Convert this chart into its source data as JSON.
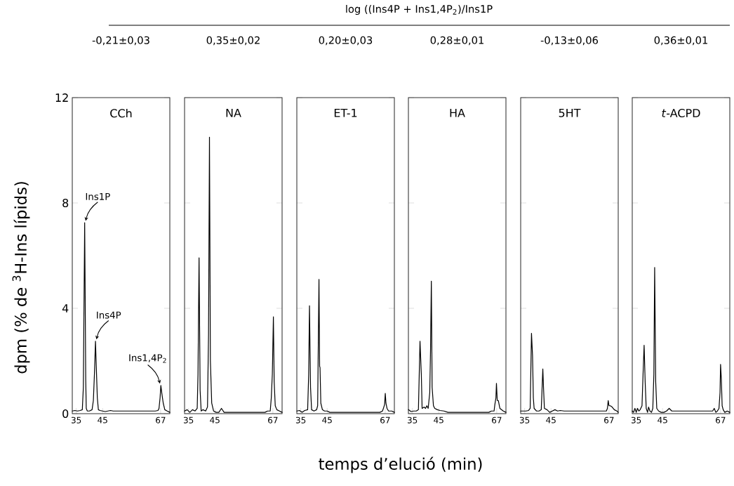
{
  "chart_data": [
    {
      "type": "other",
      "title": "log ((Ins4P + Ins1,4P$_{2}$)/Ins1P",
      "xlabel": "temps d’elució (min)"
    },
    {
      "type": "line",
      "title": "-0,21±0,03",
      "ylabel": "dpm (% de $^{3}$H-Ins lípids)",
      "color": "#000000",
      "xlim": [
        33.5,
        70.5
      ],
      "xticks": [
        35,
        45,
        67
      ],
      "ylim": [
        0,
        12
      ],
      "yticks": [
        0,
        4,
        8,
        12
      ],
      "annotations": [
        "CCh",
        {
          "text": "Ins1P",
          "x": 38.2,
          "y": 7.25
        },
        {
          "text": "Ins4P",
          "x": 42.3,
          "y": 2.75
        },
        {
          "text": "Ins1,4P$_{2}$",
          "x": 67.1,
          "y": 1.07
        }
      ],
      "x": [
        33.5,
        34.5,
        35.5,
        36.5,
        37.3,
        37.7,
        38.2,
        38.6,
        38.8,
        39.2,
        40,
        41,
        41.5,
        41.9,
        42.3,
        42.6,
        43.0,
        43.4,
        44,
        45,
        46,
        47,
        48,
        49,
        50,
        64,
        65,
        66,
        66.4,
        66.8,
        67.1,
        67.5,
        68,
        68.6,
        69.5,
        70.5
      ],
      "values": [
        0.1,
        0.12,
        0.1,
        0.12,
        0.15,
        1.0,
        7.25,
        1.3,
        0.2,
        0.1,
        0.1,
        0.15,
        0.5,
        1.5,
        2.75,
        1.8,
        0.6,
        0.15,
        0.12,
        0.1,
        0.08,
        0.1,
        0.12,
        0.1,
        0.1,
        0.1,
        0.1,
        0.12,
        0.2,
        0.6,
        1.07,
        0.75,
        0.4,
        0.15,
        0.1,
        0.05
      ]
    },
    {
      "type": "line",
      "title": "0,35±0,02",
      "color": "#000000",
      "xlim": [
        33.5,
        70.5
      ],
      "xticks": [
        35,
        45,
        67
      ],
      "ylim": [
        0,
        12
      ],
      "yticks": [
        0,
        4,
        8,
        12
      ],
      "tick_labels": "x",
      "annotations": [
        "NA"
      ],
      "x": [
        33.5,
        34.5,
        35.5,
        36.5,
        37.5,
        38.3,
        38.6,
        39.0,
        39.4,
        39.8,
        40.5,
        41.5,
        42.2,
        42.6,
        42.95,
        43.3,
        43.8,
        44.5,
        45.5,
        46.5,
        47.5,
        48.5,
        50,
        64,
        65,
        66,
        66.4,
        66.8,
        67.2,
        67.5,
        67.9,
        68.5,
        69.5,
        70.5
      ],
      "values": [
        0.1,
        0.15,
        0.05,
        0.15,
        0.1,
        0.2,
        1.5,
        5.92,
        0.9,
        0.1,
        0.15,
        0.1,
        0.25,
        3.0,
        10.5,
        2.0,
        0.4,
        0.1,
        0.05,
        0.05,
        0.2,
        0.05,
        0.05,
        0.05,
        0.1,
        0.1,
        0.6,
        1.5,
        3.68,
        1.2,
        0.3,
        0.15,
        0.1,
        0.05
      ]
    },
    {
      "type": "line",
      "title": "0,20±0,03",
      "color": "#000000",
      "xlim": [
        33.5,
        70.5
      ],
      "xticks": [
        35,
        45,
        67
      ],
      "ylim": [
        0,
        12
      ],
      "yticks": [
        0,
        4,
        8,
        12
      ],
      "tick_labels": "x",
      "annotations": [
        "ET-1"
      ],
      "x": [
        33.5,
        34.5,
        35.5,
        36.5,
        37.6,
        38.0,
        38.3,
        38.7,
        39.1,
        40,
        41,
        41.4,
        41.9,
        42.15,
        42.3,
        42.6,
        43.2,
        44,
        45,
        46,
        47,
        48,
        49,
        50,
        64,
        65,
        66,
        66.5,
        66.8,
        67.05,
        67.3,
        67.7,
        68.3,
        69.5,
        70.5
      ],
      "values": [
        0.1,
        0.12,
        0.05,
        0.12,
        0.15,
        1.5,
        4.1,
        1.0,
        0.15,
        0.1,
        0.15,
        0.3,
        5.1,
        1.8,
        1.75,
        0.4,
        0.15,
        0.1,
        0.1,
        0.05,
        0.05,
        0.05,
        0.05,
        0.05,
        0.05,
        0.05,
        0.1,
        0.25,
        0.35,
        0.77,
        0.4,
        0.2,
        0.1,
        0.1,
        0.05
      ]
    },
    {
      "type": "line",
      "title": "0,28±0,01",
      "color": "#000000",
      "xlim": [
        33.5,
        70.5
      ],
      "xticks": [
        35,
        45,
        67
      ],
      "ylim": [
        0,
        12
      ],
      "yticks": [
        0,
        4,
        8,
        12
      ],
      "tick_labels": "x",
      "annotations": [
        "HA"
      ],
      "x": [
        33.5,
        34.5,
        35.5,
        36.5,
        37.3,
        37.9,
        38.4,
        38.7,
        39.5,
        40,
        40.5,
        41.0,
        41.6,
        41.9,
        42.2,
        42.5,
        43,
        43.5,
        44.5,
        45.5,
        47,
        48.5,
        50,
        64,
        65,
        66,
        66.3,
        66.7,
        66.9,
        67.2,
        67.6,
        68.2,
        69.5,
        70.5
      ],
      "values": [
        0.15,
        0.08,
        0.1,
        0.1,
        0.15,
        2.75,
        1.5,
        0.2,
        0.25,
        0.2,
        0.3,
        0.2,
        0.8,
        2.45,
        5.03,
        1.0,
        0.3,
        0.2,
        0.15,
        0.12,
        0.1,
        0.05,
        0.05,
        0.05,
        0.1,
        0.1,
        0.35,
        0.6,
        1.15,
        0.5,
        0.5,
        0.2,
        0.1,
        0.05
      ]
    },
    {
      "type": "line",
      "title": "-0,13±0,06",
      "color": "#000000",
      "xlim": [
        33.5,
        70.5
      ],
      "xticks": [
        35,
        45,
        67
      ],
      "ylim": [
        0,
        12
      ],
      "yticks": [
        0,
        4,
        8,
        12
      ],
      "tick_labels": "x",
      "annotations": [
        "5HT"
      ],
      "x": [
        33.5,
        34.5,
        35.5,
        36.5,
        37.1,
        37.6,
        38.0,
        38.3,
        38.6,
        39.5,
        40.5,
        41.3,
        41.6,
        41.9,
        42.2,
        42.5,
        43.5,
        44.5,
        45.5,
        46.5,
        47.5,
        48.5,
        50,
        64,
        65,
        66,
        66.4,
        66.7,
        67.0,
        67.5,
        68.2,
        69,
        70,
        70.5
      ],
      "values": [
        0.1,
        0.1,
        0.1,
        0.12,
        0.2,
        3.05,
        2.2,
        0.6,
        0.2,
        0.1,
        0.1,
        0.15,
        0.9,
        1.7,
        0.9,
        0.2,
        0.15,
        0.05,
        0.1,
        0.15,
        0.1,
        0.12,
        0.1,
        0.1,
        0.1,
        0.1,
        0.2,
        0.5,
        0.3,
        0.3,
        0.25,
        0.15,
        0.1,
        0.05
      ]
    },
    {
      "type": "line",
      "title": "0,36±0,01",
      "color": "#000000",
      "xlim": [
        33.5,
        70.5
      ],
      "xticks": [
        35,
        45,
        67
      ],
      "ylim": [
        0,
        12
      ],
      "yticks": [
        0,
        4,
        8,
        12
      ],
      "tick_labels": "x",
      "annotations": [
        "*t*-ACPD"
      ],
      "x": [
        33.5,
        34,
        34.5,
        35,
        35.5,
        36,
        36.5,
        37.2,
        37.6,
        38.0,
        38.4,
        38.8,
        39.3,
        39.7,
        40.2,
        40.8,
        41.3,
        41.7,
        42.0,
        42.4,
        42.8,
        43.5,
        44.5,
        45.5,
        46.5,
        47.5,
        48.5,
        50,
        64,
        64.6,
        65.2,
        65.8,
        66.4,
        66.8,
        67.0,
        67.3,
        67.6,
        68,
        68.6,
        69.5,
        70.5
      ],
      "values": [
        0.1,
        0.05,
        0.2,
        0.05,
        0.2,
        0.1,
        0.15,
        0.3,
        1.5,
        2.6,
        1.2,
        0.2,
        0.05,
        0.25,
        0.1,
        0.05,
        0.2,
        1.5,
        5.55,
        1.2,
        0.2,
        0.1,
        0.05,
        0.05,
        0.1,
        0.2,
        0.1,
        0.1,
        0.1,
        0.2,
        0.05,
        0.1,
        0.2,
        0.8,
        1.87,
        1.3,
        0.3,
        0.15,
        0.05,
        0.1,
        0.05
      ]
    }
  ]
}
